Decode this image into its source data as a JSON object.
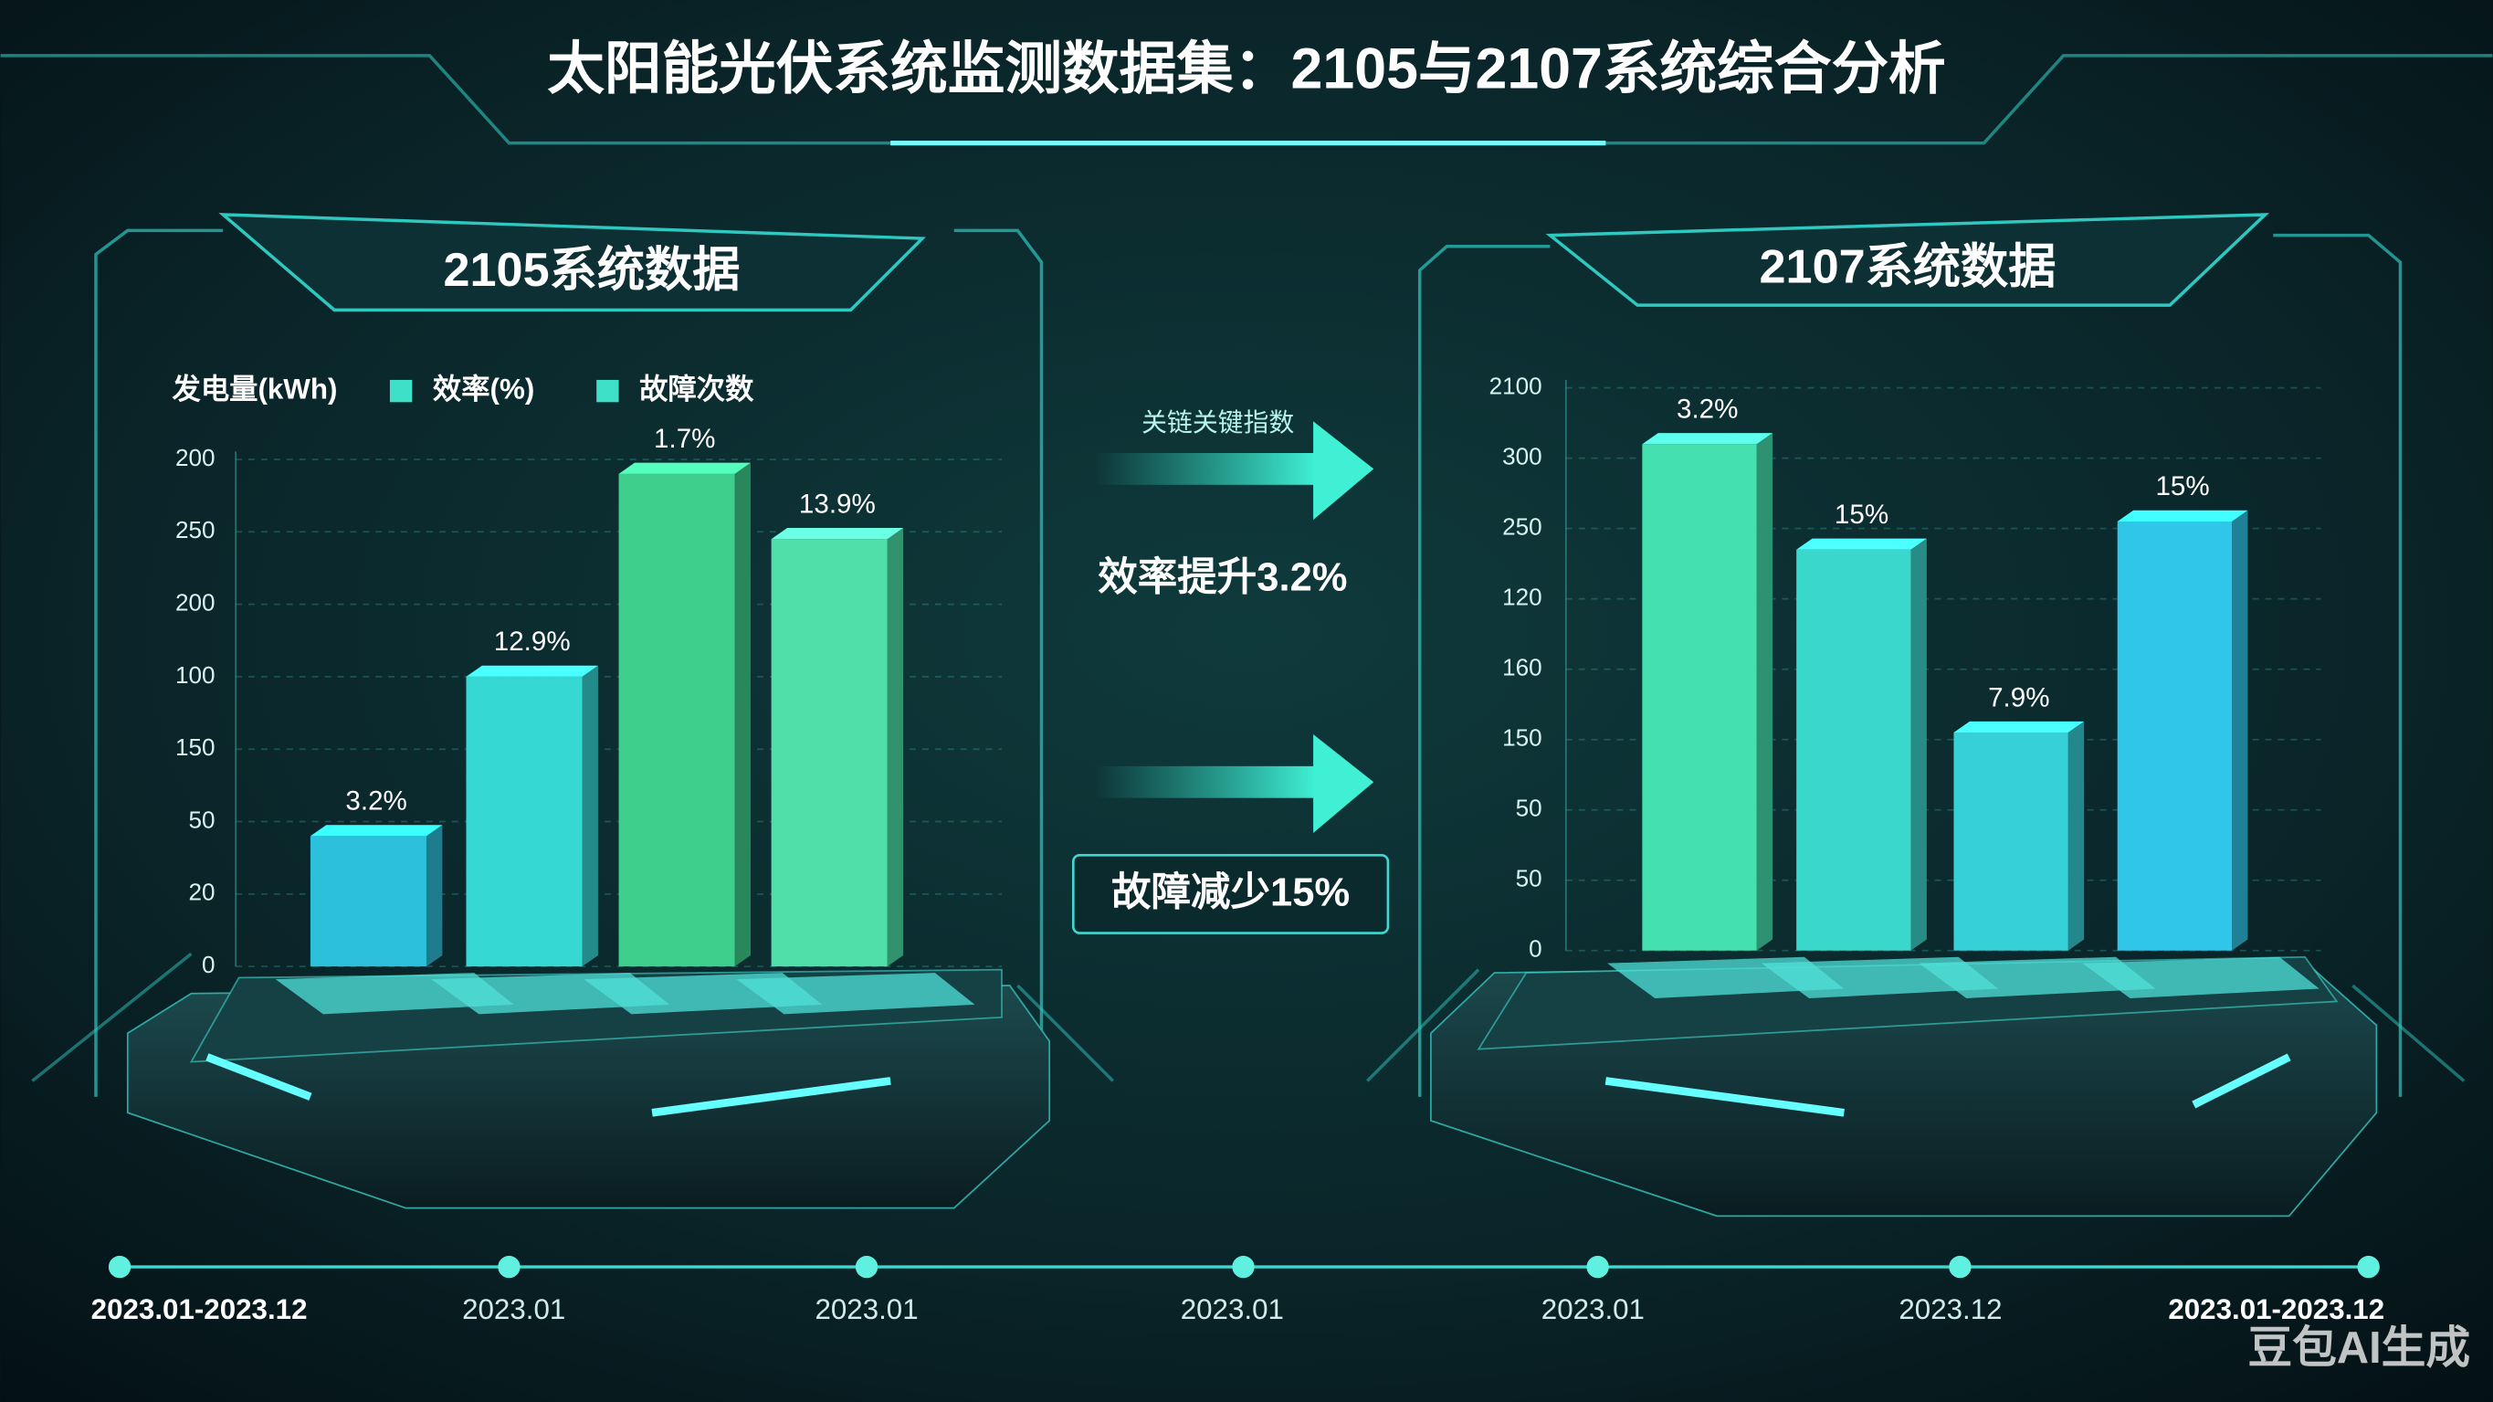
{
  "title": "太阳能光伏系统监测数据集：2105与2107系统综合分析",
  "chart_data": [
    {
      "type": "bar3d",
      "title": "2105系统数据",
      "legend": [
        {
          "label": "发电量(kWh)"
        },
        {
          "label": "效率(%)",
          "color": "#3fe0c8"
        },
        {
          "label": "故障次数",
          "color": "#3fe0c8"
        }
      ],
      "ylim": [
        0,
        7
      ],
      "yticks": [
        {
          "value": 0,
          "label": "0"
        },
        {
          "value": 1,
          "label": "20"
        },
        {
          "value": 2,
          "label": "50"
        },
        {
          "value": 3,
          "label": "150"
        },
        {
          "value": 4,
          "label": "100"
        },
        {
          "value": 5,
          "label": "200"
        },
        {
          "value": 6,
          "label": "250"
        },
        {
          "value": 7,
          "label": "200"
        }
      ],
      "values": [
        1.8,
        4.0,
        6.8,
        5.9
      ],
      "bar_labels": [
        "3.2%",
        "12.9%",
        "1.7%",
        "13.9%"
      ],
      "colors": [
        "#2cc0dc",
        "#36d8d4",
        "#3ecf8c",
        "#4fe0aa"
      ]
    },
    {
      "type": "bar3d",
      "title": "2107系统数据",
      "ylim": [
        0,
        8
      ],
      "yticks": [
        {
          "value": 0,
          "label": "0"
        },
        {
          "value": 1,
          "label": "50"
        },
        {
          "value": 2,
          "label": "50"
        },
        {
          "value": 3,
          "label": "150"
        },
        {
          "value": 4,
          "label": "160"
        },
        {
          "value": 5,
          "label": "120"
        },
        {
          "value": 6,
          "label": "250"
        },
        {
          "value": 7,
          "label": "300"
        },
        {
          "value": 8,
          "label": "2100"
        }
      ],
      "values": [
        7.2,
        5.7,
        3.1,
        6.1
      ],
      "bar_labels": [
        "3.2%",
        "15%",
        "7.9%",
        "15%"
      ],
      "colors": [
        "#44e0b0",
        "#3ad8cc",
        "#36d0d8",
        "#30c6ea"
      ]
    }
  ],
  "center": {
    "caption": "关链关键指数",
    "efficiency": "效率提升3.2%",
    "faults": "故障减少15%"
  },
  "timeline": [
    "2023.01-2023.12",
    "2023.01",
    "2023.01",
    "2023.01",
    "2023.01",
    "2023.12",
    "2023.01-2023.12"
  ],
  "watermark": "豆包AI生成"
}
